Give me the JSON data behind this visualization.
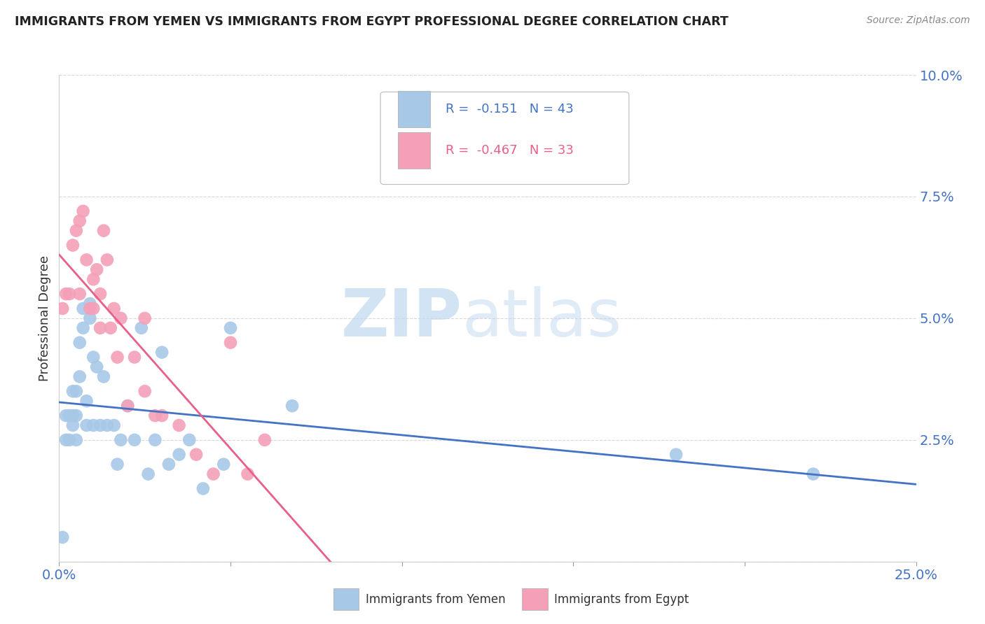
{
  "title": "IMMIGRANTS FROM YEMEN VS IMMIGRANTS FROM EGYPT PROFESSIONAL DEGREE CORRELATION CHART",
  "source": "Source: ZipAtlas.com",
  "ylabel": "Professional Degree",
  "xlim": [
    0.0,
    0.25
  ],
  "ylim": [
    0.0,
    0.1
  ],
  "xticks": [
    0.0,
    0.05,
    0.1,
    0.15,
    0.2,
    0.25
  ],
  "xticklabels": [
    "0.0%",
    "",
    "",
    "",
    "",
    "25.0%"
  ],
  "yticks": [
    0.0,
    0.025,
    0.05,
    0.075,
    0.1
  ],
  "yticklabels": [
    "",
    "2.5%",
    "5.0%",
    "7.5%",
    "10.0%"
  ],
  "yemen_color": "#a8c8e8",
  "egypt_color": "#f4a0b8",
  "yemen_line_color": "#4472c4",
  "egypt_line_color": "#e8608a",
  "legend_r_yemen": "-0.151",
  "legend_n_yemen": "43",
  "legend_r_egypt": "-0.467",
  "legend_n_egypt": "33",
  "legend_label_yemen": "Immigrants from Yemen",
  "legend_label_egypt": "Immigrants from Egypt",
  "watermark_zip": "ZIP",
  "watermark_atlas": "atlas",
  "background_color": "#ffffff",
  "grid_color": "#d8d8d8",
  "yemen_x": [
    0.001,
    0.002,
    0.002,
    0.003,
    0.003,
    0.004,
    0.004,
    0.004,
    0.005,
    0.005,
    0.005,
    0.006,
    0.006,
    0.007,
    0.007,
    0.008,
    0.008,
    0.009,
    0.009,
    0.01,
    0.01,
    0.011,
    0.012,
    0.013,
    0.014,
    0.016,
    0.017,
    0.018,
    0.02,
    0.022,
    0.024,
    0.026,
    0.028,
    0.03,
    0.032,
    0.035,
    0.038,
    0.042,
    0.048,
    0.05,
    0.068,
    0.18,
    0.22
  ],
  "yemen_y": [
    0.005,
    0.025,
    0.03,
    0.025,
    0.03,
    0.028,
    0.03,
    0.035,
    0.025,
    0.03,
    0.035,
    0.038,
    0.045,
    0.048,
    0.052,
    0.028,
    0.033,
    0.05,
    0.053,
    0.028,
    0.042,
    0.04,
    0.028,
    0.038,
    0.028,
    0.028,
    0.02,
    0.025,
    0.032,
    0.025,
    0.048,
    0.018,
    0.025,
    0.043,
    0.02,
    0.022,
    0.025,
    0.015,
    0.02,
    0.048,
    0.032,
    0.022,
    0.018
  ],
  "egypt_x": [
    0.001,
    0.002,
    0.003,
    0.004,
    0.005,
    0.006,
    0.006,
    0.007,
    0.008,
    0.009,
    0.01,
    0.01,
    0.011,
    0.012,
    0.012,
    0.013,
    0.014,
    0.015,
    0.016,
    0.017,
    0.018,
    0.02,
    0.022,
    0.025,
    0.025,
    0.028,
    0.03,
    0.035,
    0.04,
    0.045,
    0.05,
    0.055,
    0.06
  ],
  "egypt_y": [
    0.052,
    0.055,
    0.055,
    0.065,
    0.068,
    0.055,
    0.07,
    0.072,
    0.062,
    0.052,
    0.052,
    0.058,
    0.06,
    0.048,
    0.055,
    0.068,
    0.062,
    0.048,
    0.052,
    0.042,
    0.05,
    0.032,
    0.042,
    0.035,
    0.05,
    0.03,
    0.03,
    0.028,
    0.022,
    0.018,
    0.045,
    0.018,
    0.025
  ]
}
